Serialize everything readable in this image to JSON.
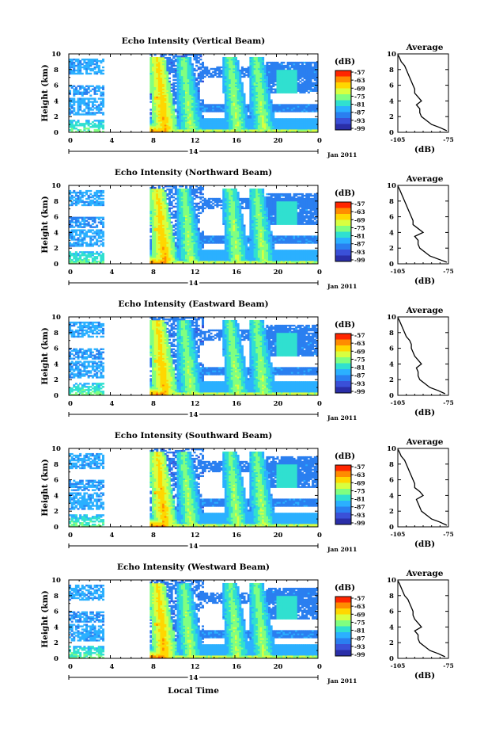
{
  "chart_data": [
    {
      "type": "heatmap",
      "title": "Echo Intensity (Vertical Beam)",
      "ylabel": "Height (km)",
      "ylim": [
        0,
        10
      ],
      "yticks": [
        "0",
        "2",
        "4",
        "6",
        "8",
        "10"
      ],
      "xlim": [
        0,
        24
      ],
      "xticks": [
        "0",
        "4",
        "8",
        "12",
        "16",
        "20",
        "0"
      ],
      "date_label": "14",
      "month_label": "Jan 2011",
      "colorbar": {
        "unit": "(dB)",
        "ticks": [
          "-57",
          "-63",
          "-69",
          "-75",
          "-81",
          "-87",
          "-93",
          "-99"
        ],
        "colors": [
          "#ff2600",
          "#ff8c00",
          "#ffd700",
          "#d8ff40",
          "#80ff80",
          "#30e0d0",
          "#2bb0ff",
          "#2a7ff0",
          "#3a50d8",
          "#2a2ea8"
        ]
      },
      "convective_events_hr": [
        8.5,
        11.0,
        15.5,
        18.0
      ],
      "profile": {
        "title": "Average",
        "xlabel": "(dB)",
        "xticks": [
          "-105",
          "-75"
        ],
        "xlim": [
          -105,
          -75
        ],
        "ylim": [
          0,
          10
        ],
        "yticks": [
          "0",
          "2",
          "4",
          "6",
          "8",
          "10"
        ],
        "height_km": [
          0.2,
          0.6,
          1.0,
          1.5,
          2.0,
          2.5,
          3.0,
          3.5,
          4.0,
          4.5,
          5.0,
          5.5,
          6.0,
          6.5,
          7.0,
          7.5,
          8.0,
          8.5,
          9.0,
          9.5,
          9.9
        ],
        "echo_db": [
          -76,
          -80,
          -85,
          -88,
          -91,
          -92,
          -92,
          -94,
          -91,
          -93,
          -95,
          -95,
          -96,
          -97,
          -98,
          -99,
          -100,
          -101,
          -103,
          -104,
          -105
        ]
      }
    },
    {
      "type": "heatmap",
      "title": "Echo Intensity (Northward Beam)",
      "ylabel": "Height (km)",
      "ylim": [
        0,
        10
      ],
      "yticks": [
        "0",
        "2",
        "4",
        "6",
        "8",
        "10"
      ],
      "xlim": [
        0,
        24
      ],
      "xticks": [
        "0",
        "4",
        "8",
        "12",
        "16",
        "20",
        "0"
      ],
      "date_label": "14",
      "month_label": "Jan 2011",
      "colorbar": {
        "unit": "(dB)",
        "ticks": [
          "-57",
          "-63",
          "-69",
          "-75",
          "-81",
          "-87",
          "-93",
          "-99"
        ],
        "colors": [
          "#ff2600",
          "#ff8c00",
          "#ffd700",
          "#d8ff40",
          "#80ff80",
          "#30e0d0",
          "#2bb0ff",
          "#2a7ff0",
          "#3a50d8",
          "#2a2ea8"
        ]
      },
      "convective_events_hr": [
        8.5,
        11.0,
        15.5,
        18.0
      ],
      "profile": {
        "title": "Average",
        "xlabel": "(dB)",
        "xticks": [
          "-105",
          "-75"
        ],
        "xlim": [
          -105,
          -75
        ],
        "ylim": [
          0,
          10
        ],
        "yticks": [
          "0",
          "2",
          "4",
          "6",
          "8",
          "10"
        ],
        "height_km": [
          0.2,
          0.6,
          1.0,
          1.5,
          2.0,
          2.5,
          3.0,
          3.5,
          4.0,
          4.5,
          5.0,
          5.5,
          6.0,
          6.5,
          7.0,
          7.5,
          8.0,
          8.5,
          9.0,
          9.5,
          9.9
        ],
        "echo_db": [
          -76,
          -81,
          -86,
          -89,
          -92,
          -93,
          -93,
          -95,
          -90,
          -93,
          -96,
          -96,
          -97,
          -98,
          -99,
          -100,
          -101,
          -102,
          -103,
          -104,
          -105
        ]
      }
    },
    {
      "type": "heatmap",
      "title": "Echo Intensity (Eastward Beam)",
      "ylabel": "Height (km)",
      "ylim": [
        0,
        10
      ],
      "yticks": [
        "0",
        "2",
        "4",
        "6",
        "8",
        "10"
      ],
      "xlim": [
        0,
        24
      ],
      "xticks": [
        "0",
        "4",
        "8",
        "12",
        "16",
        "20",
        "0"
      ],
      "date_label": "14",
      "month_label": "Jan 2011",
      "colorbar": {
        "unit": "(dB)",
        "ticks": [
          "-57",
          "-63",
          "-69",
          "-75",
          "-81",
          "-87",
          "-93",
          "-99"
        ],
        "colors": [
          "#ff2600",
          "#ff8c00",
          "#ffd700",
          "#d8ff40",
          "#80ff80",
          "#30e0d0",
          "#2bb0ff",
          "#2a7ff0",
          "#3a50d8",
          "#2a2ea8"
        ]
      },
      "convective_events_hr": [
        8.5,
        11.0,
        15.5,
        18.0
      ],
      "profile": {
        "title": "Average",
        "xlabel": "(dB)",
        "xticks": [
          "-105",
          "-75"
        ],
        "xlim": [
          -105,
          -75
        ],
        "ylim": [
          0,
          10
        ],
        "yticks": [
          "0",
          "2",
          "4",
          "6",
          "8",
          "10"
        ],
        "height_km": [
          0.2,
          0.6,
          1.0,
          1.5,
          2.0,
          2.5,
          3.0,
          3.5,
          4.0,
          4.5,
          5.0,
          5.5,
          6.0,
          6.5,
          7.0,
          7.5,
          8.0,
          8.5,
          9.0,
          9.5,
          9.9
        ],
        "echo_db": [
          -77,
          -81,
          -86,
          -89,
          -92,
          -93,
          -93,
          -94,
          -91,
          -93,
          -95,
          -96,
          -97,
          -97,
          -98,
          -100,
          -101,
          -102,
          -103,
          -104,
          -105
        ]
      }
    },
    {
      "type": "heatmap",
      "title": "Echo Intensity (Southward Beam)",
      "ylabel": "Height (km)",
      "ylim": [
        0,
        10
      ],
      "yticks": [
        "0",
        "2",
        "4",
        "6",
        "8",
        "10"
      ],
      "xlim": [
        0,
        24
      ],
      "xticks": [
        "0",
        "4",
        "8",
        "12",
        "16",
        "20",
        "0"
      ],
      "date_label": "14",
      "month_label": "Jan 2011",
      "colorbar": {
        "unit": "(dB)",
        "ticks": [
          "-57",
          "-63",
          "-69",
          "-75",
          "-81",
          "-87",
          "-93",
          "-99"
        ],
        "colors": [
          "#ff2600",
          "#ff8c00",
          "#ffd700",
          "#d8ff40",
          "#80ff80",
          "#30e0d0",
          "#2bb0ff",
          "#2a7ff0",
          "#3a50d8",
          "#2a2ea8"
        ]
      },
      "convective_events_hr": [
        8.5,
        11.0,
        15.5,
        18.0
      ],
      "profile": {
        "title": "Average",
        "xlabel": "(dB)",
        "xticks": [
          "-105",
          "-75"
        ],
        "xlim": [
          -105,
          -75
        ],
        "ylim": [
          0,
          10
        ],
        "yticks": [
          "0",
          "2",
          "4",
          "6",
          "8",
          "10"
        ],
        "height_km": [
          0.2,
          0.6,
          1.0,
          1.5,
          2.0,
          2.5,
          3.0,
          3.5,
          4.0,
          4.5,
          5.0,
          5.5,
          6.0,
          6.5,
          7.0,
          7.5,
          8.0,
          8.5,
          9.0,
          9.5,
          9.9
        ],
        "echo_db": [
          -76,
          -80,
          -85,
          -88,
          -91,
          -92,
          -93,
          -94,
          -90,
          -92,
          -95,
          -95,
          -96,
          -97,
          -98,
          -99,
          -100,
          -101,
          -103,
          -104,
          -105
        ]
      }
    },
    {
      "type": "heatmap",
      "title": "Echo Intensity (Westward Beam)",
      "ylabel": "Height (km)",
      "ylim": [
        0,
        10
      ],
      "yticks": [
        "0",
        "2",
        "4",
        "6",
        "8",
        "10"
      ],
      "xlim": [
        0,
        24
      ],
      "xticks": [
        "0",
        "4",
        "8",
        "12",
        "16",
        "20",
        "0"
      ],
      "date_label": "14",
      "month_label": "Jan 2011",
      "xlabel": "Local Time",
      "colorbar": {
        "unit": "(dB)",
        "ticks": [
          "-57",
          "-63",
          "-69",
          "-75",
          "-81",
          "-87",
          "-93",
          "-99"
        ],
        "colors": [
          "#ff2600",
          "#ff8c00",
          "#ffd700",
          "#d8ff40",
          "#80ff80",
          "#30e0d0",
          "#2bb0ff",
          "#2a7ff0",
          "#3a50d8",
          "#2a2ea8"
        ]
      },
      "convective_events_hr": [
        8.5,
        11.0,
        15.5,
        18.0
      ],
      "profile": {
        "title": "Average",
        "xlabel": "(dB)",
        "xticks": [
          "-105",
          "-75"
        ],
        "xlim": [
          -105,
          -75
        ],
        "ylim": [
          0,
          10
        ],
        "yticks": [
          "0",
          "2",
          "4",
          "6",
          "8",
          "10"
        ],
        "height_km": [
          0.2,
          0.6,
          1.0,
          1.5,
          2.0,
          2.5,
          3.0,
          3.5,
          4.0,
          4.5,
          5.0,
          5.5,
          6.0,
          6.5,
          7.0,
          7.5,
          8.0,
          8.5,
          9.0,
          9.5,
          9.9
        ],
        "echo_db": [
          -77,
          -81,
          -86,
          -89,
          -92,
          -93,
          -93,
          -95,
          -91,
          -93,
          -95,
          -96,
          -96,
          -97,
          -98,
          -99,
          -101,
          -102,
          -103,
          -104,
          -105
        ]
      }
    }
  ]
}
